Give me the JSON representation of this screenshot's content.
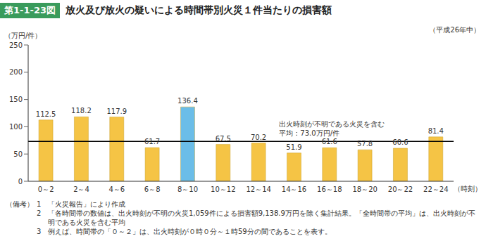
{
  "chart_data": {
    "type": "bar",
    "figure_label": "第1-1-23図",
    "title": "放火及び放火の疑いによる時間帯別火災１件当たりの損害額",
    "subtitle": "（平成26年中）",
    "y_label": "（万円/件）",
    "x_label": "（時刻）",
    "categories": [
      "0～2",
      "2～4",
      "4～6",
      "6～8",
      "8～10",
      "10～12",
      "12～14",
      "14～16",
      "16～18",
      "18～20",
      "20～22",
      "22～24"
    ],
    "values": [
      112.5,
      118.2,
      117.9,
      61.7,
      136.4,
      67.5,
      70.2,
      51.9,
      61.6,
      57.8,
      60.6,
      81.4
    ],
    "colors": [
      "#f5c445",
      "#f5c445",
      "#f5c445",
      "#f5c445",
      "#6bbde8",
      "#f5c445",
      "#f5c445",
      "#f5c445",
      "#f5c445",
      "#f5c445",
      "#f5c445",
      "#f5c445"
    ],
    "ylim": [
      0,
      250
    ],
    "yticks": [
      0,
      50,
      100,
      150,
      200,
      250
    ],
    "grid": false,
    "data_labels": true,
    "reference_line": {
      "value": 73.0,
      "color": "#000000",
      "label": [
        "出火時刻が不明である火災を含む",
        "平均：73.0万円/件"
      ]
    },
    "notes": {
      "heading": "（備考）",
      "items": [
        {
          "num": "1",
          "text": "「火災報告」により作成"
        },
        {
          "num": "2",
          "text": "「各時間帯の数値は、出火時刻が不明の火災1,059件による損害額9,138.9万円を除く集計結果。「全時間帯の平均」は、出火時刻が不明である火災を含む平均"
        },
        {
          "num": "3",
          "text": "例えば、時間帯の「０～２」は、出火時刻が０時０分～１時59分の間であることを表す。"
        }
      ]
    }
  }
}
